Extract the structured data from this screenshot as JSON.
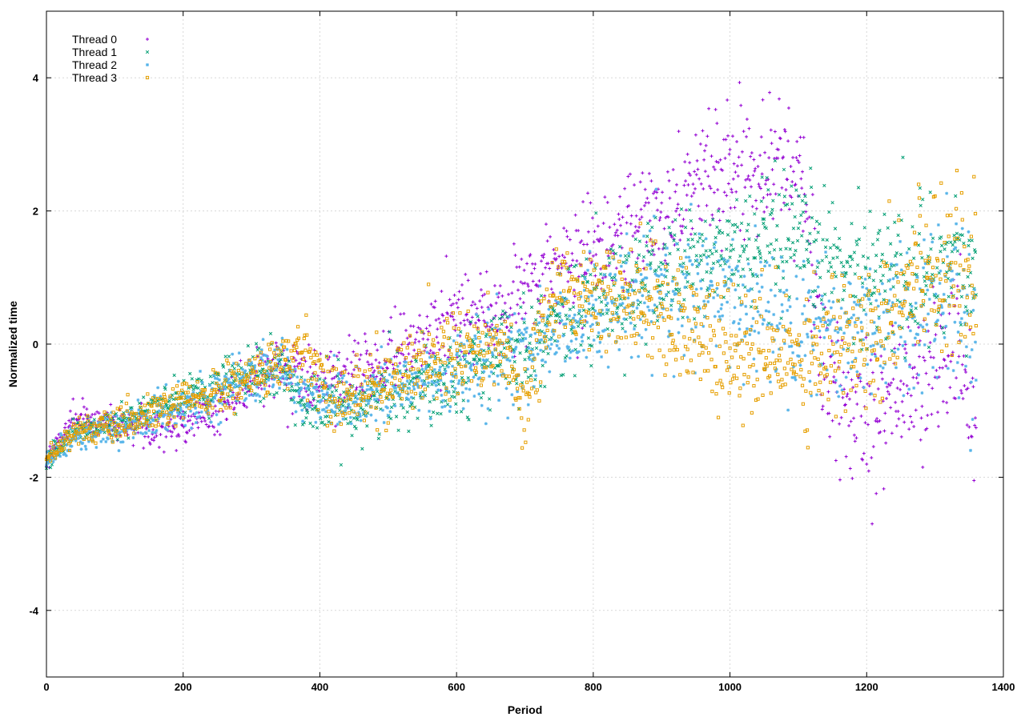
{
  "chart_data": {
    "type": "scatter",
    "title": "",
    "xlabel": "Period",
    "ylabel": "Normalized time",
    "xlim": [
      0,
      1400
    ],
    "ylim": [
      -5,
      5
    ],
    "xticks": [
      0,
      200,
      400,
      600,
      800,
      1000,
      1200,
      1400
    ],
    "yticks": [
      -4,
      -2,
      0,
      2,
      4
    ],
    "grid": true,
    "legend_position": "top-left",
    "series": [
      {
        "name": "Thread 0",
        "color": "#9400d3",
        "marker": "plus",
        "trend": [
          [
            0,
            -1.75
          ],
          [
            40,
            -1.1
          ],
          [
            100,
            -1.2
          ],
          [
            180,
            -1.3
          ],
          [
            260,
            -0.9
          ],
          [
            340,
            -0.35
          ],
          [
            400,
            -0.6
          ],
          [
            460,
            -0.4
          ],
          [
            520,
            -0.1
          ],
          [
            600,
            0.3
          ],
          [
            680,
            0.6
          ],
          [
            740,
            1.1
          ],
          [
            800,
            1.3
          ],
          [
            880,
            1.8
          ],
          [
            960,
            2.5
          ],
          [
            1040,
            2.8
          ],
          [
            1100,
            2.6
          ],
          [
            1150,
            -1.0
          ],
          [
            1200,
            -0.9
          ],
          [
            1280,
            -0.6
          ],
          [
            1330,
            0.0
          ],
          [
            1360,
            -1.1
          ]
        ]
      },
      {
        "name": "Thread 1",
        "color": "#009e73",
        "marker": "cross",
        "trend": [
          [
            0,
            -1.75
          ],
          [
            40,
            -1.3
          ],
          [
            100,
            -1.2
          ],
          [
            180,
            -0.9
          ],
          [
            260,
            -0.6
          ],
          [
            340,
            -0.4
          ],
          [
            380,
            -0.9
          ],
          [
            460,
            -0.9
          ],
          [
            540,
            -0.6
          ],
          [
            620,
            -0.3
          ],
          [
            700,
            0.0
          ],
          [
            780,
            0.5
          ],
          [
            860,
            0.9
          ],
          [
            940,
            1.2
          ],
          [
            1020,
            1.4
          ],
          [
            1100,
            1.4
          ],
          [
            1180,
            1.1
          ],
          [
            1260,
            1.0
          ],
          [
            1320,
            1.2
          ],
          [
            1360,
            0.8
          ]
        ]
      },
      {
        "name": "Thread 2",
        "color": "#56b4e9",
        "marker": "star",
        "trend": [
          [
            0,
            -1.75
          ],
          [
            40,
            -1.4
          ],
          [
            100,
            -1.3
          ],
          [
            180,
            -1.0
          ],
          [
            260,
            -0.7
          ],
          [
            340,
            -0.3
          ],
          [
            380,
            -0.8
          ],
          [
            460,
            -0.8
          ],
          [
            540,
            -0.6
          ],
          [
            620,
            -0.4
          ],
          [
            700,
            -0.1
          ],
          [
            780,
            0.4
          ],
          [
            860,
            0.6
          ],
          [
            940,
            0.8
          ],
          [
            1020,
            0.6
          ],
          [
            1100,
            0.4
          ],
          [
            1180,
            0.2
          ],
          [
            1260,
            0.4
          ],
          [
            1320,
            0.8
          ],
          [
            1360,
            0.4
          ]
        ]
      },
      {
        "name": "Thread 3",
        "color": "#e69f00",
        "marker": "square",
        "trend": [
          [
            0,
            -1.75
          ],
          [
            40,
            -1.3
          ],
          [
            100,
            -1.25
          ],
          [
            180,
            -0.95
          ],
          [
            260,
            -0.7
          ],
          [
            340,
            -0.3
          ],
          [
            380,
            -0.1
          ],
          [
            420,
            -0.8
          ],
          [
            480,
            -0.7
          ],
          [
            540,
            -0.3
          ],
          [
            600,
            -0.1
          ],
          [
            660,
            0.0
          ],
          [
            700,
            -0.8
          ],
          [
            740,
            0.7
          ],
          [
            820,
            0.8
          ],
          [
            880,
            0.6
          ],
          [
            940,
            0.3
          ],
          [
            1000,
            -0.2
          ],
          [
            1080,
            -0.2
          ],
          [
            1160,
            0.0
          ],
          [
            1220,
            0.3
          ],
          [
            1260,
            1.0
          ],
          [
            1320,
            1.3
          ],
          [
            1360,
            1.0
          ]
        ]
      }
    ]
  }
}
